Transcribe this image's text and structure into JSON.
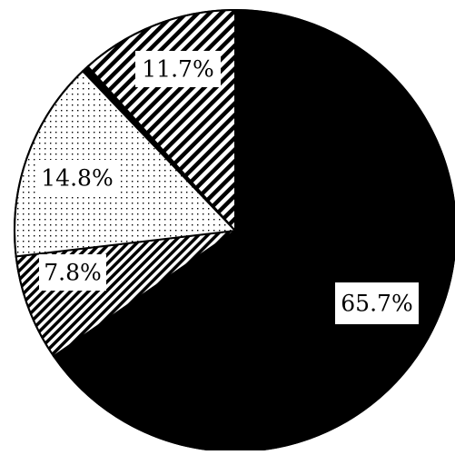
{
  "chart_data": {
    "type": "pie",
    "title": "",
    "start_angle_deg": 90,
    "direction": "clockwise",
    "slices": [
      {
        "label": "65.7%",
        "value": 65.7,
        "fill": "solid",
        "color": "#000000"
      },
      {
        "label": "7.8%",
        "value": 7.8,
        "fill": "diagonal-stripes-fine",
        "color": "#000000"
      },
      {
        "label": "14.8%",
        "value": 14.8,
        "fill": "dots",
        "color": "#000000"
      },
      {
        "label": "",
        "value": 0.5,
        "fill": "solid",
        "color": "#000000"
      },
      {
        "label": "11.7%",
        "value": 11.7,
        "fill": "diagonal-stripes-wide",
        "color": "#000000"
      }
    ]
  }
}
